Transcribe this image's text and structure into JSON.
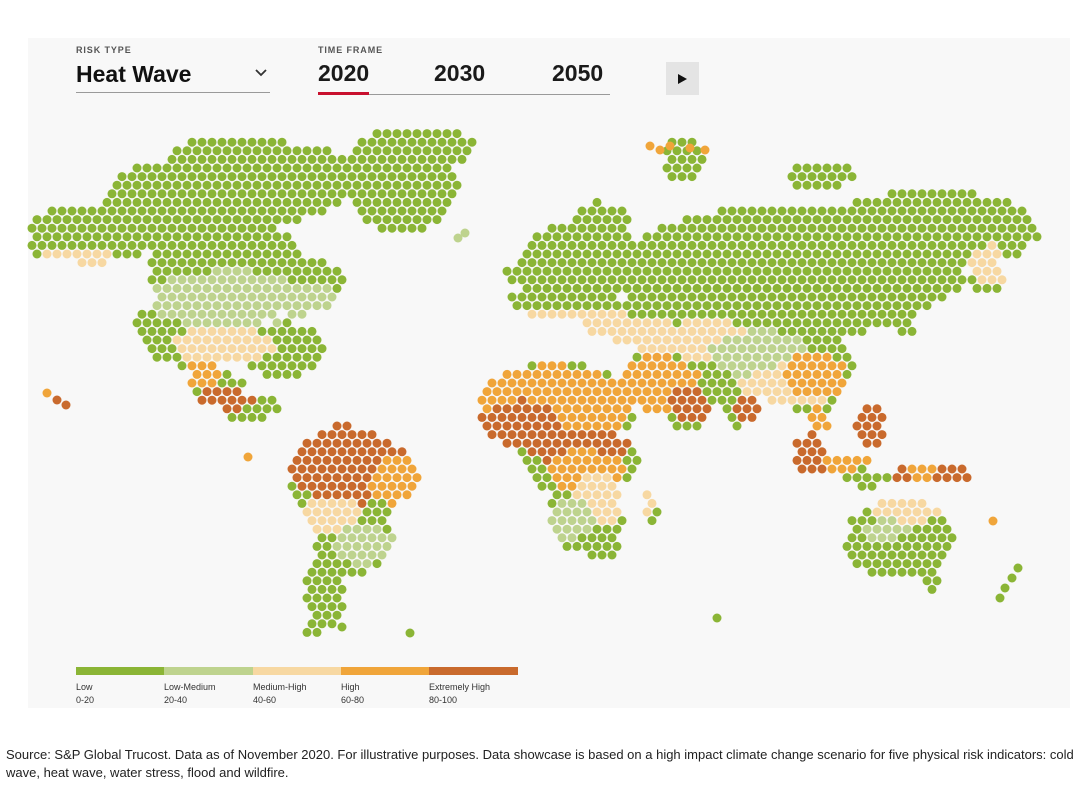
{
  "controls": {
    "risk_type_label": "RISK TYPE",
    "risk_type_value": "Heat Wave",
    "time_frame_label": "TIME FRAME",
    "time_frames": [
      "2020",
      "2030",
      "2050"
    ],
    "active_time_frame": "2020",
    "play_icon": "play-icon",
    "dropdown_icon": "chevron-down-icon"
  },
  "legend": {
    "items": [
      {
        "name": "Low",
        "range": "0-20",
        "color": "#8bb536"
      },
      {
        "name": "Low-Medium",
        "range": "20-40",
        "color": "#bed38e"
      },
      {
        "name": "Medium-High",
        "range": "40-60",
        "color": "#f7d8a2"
      },
      {
        "name": "High",
        "range": "60-80",
        "color": "#f0a53a"
      },
      {
        "name": "Extremely High",
        "range": "80-100",
        "color": "#c96a2d"
      }
    ]
  },
  "source_note": "Source: S&P Global Trucost. Data as of November 2020. For illustrative purposes. Data showcase is based on a high impact climate change scenario for five physical risk indicators: cold wave, heat wave, water stress, flood and wildfire."
}
